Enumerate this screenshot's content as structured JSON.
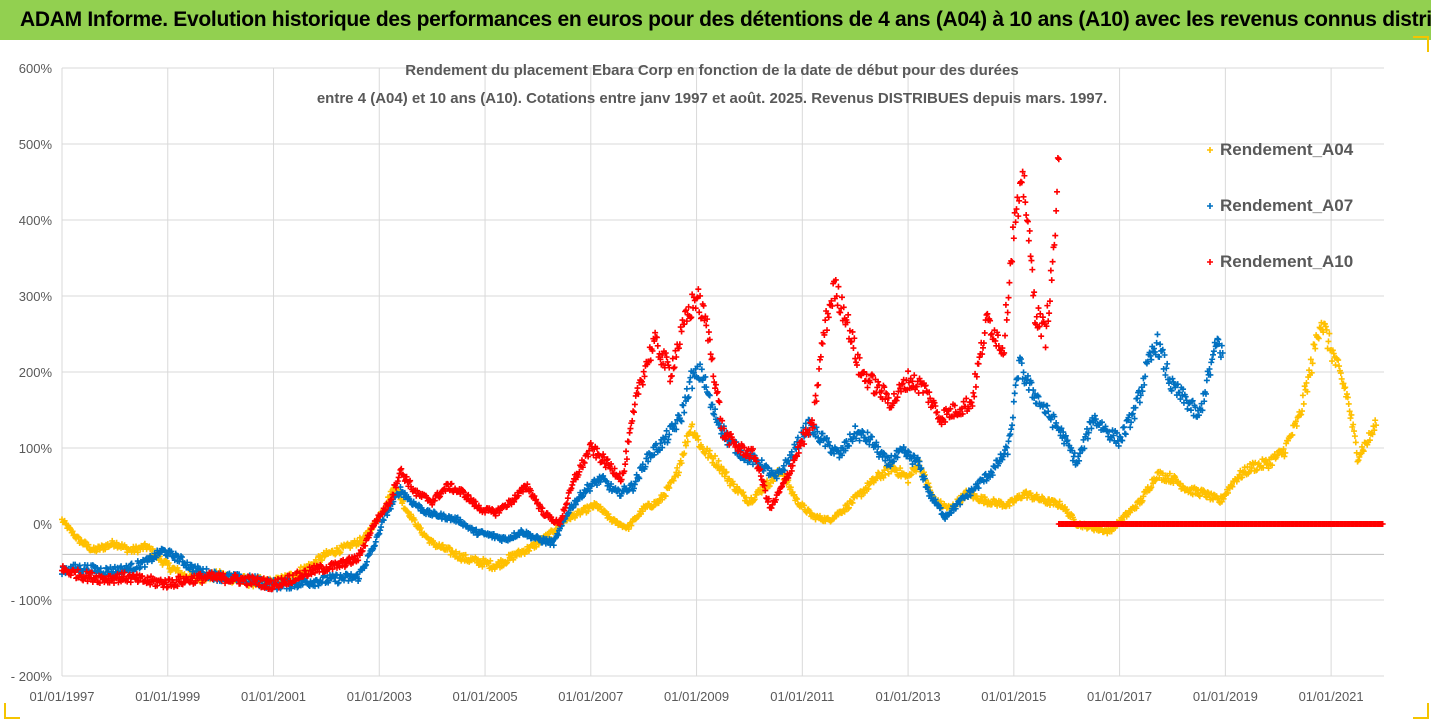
{
  "banner": {
    "title": "ADAM Informe. Evolution historique des performances en euros pour des détentions de 4 ans (A04) à 10 ans (A10) avec les revenus connus distribués"
  },
  "colors": {
    "banner_bg": "#92d050",
    "A04": "#ffc000",
    "A07": "#0070c0",
    "A10": "#ff0000",
    "grid": "#d9d9d9"
  },
  "chart_data": {
    "type": "scatter",
    "title_line1": "Rendement du placement Ebara Corp en fonction de la date de début pour des durées",
    "title_line2": "entre 4 (A04) et 10 ans (A10). Cotations entre janv 1997 et août. 2025. Revenus DISTRIBUES depuis mars. 1997.",
    "xlabel": "",
    "ylabel": "",
    "ylim": [
      -200,
      600
    ],
    "xlim": [
      1997.0,
      2022.0
    ],
    "y_ticks": [
      "600%",
      "500%",
      "400%",
      "300%",
      "200%",
      "100%",
      "0%",
      "- 100%",
      "- 200%"
    ],
    "y_tick_values": [
      600,
      500,
      400,
      300,
      200,
      100,
      0,
      -100,
      -200
    ],
    "x_ticks": [
      "01/01/1997",
      "01/01/1999",
      "01/01/2001",
      "01/01/2003",
      "01/01/2005",
      "01/01/2007",
      "01/01/2009",
      "01/01/2011",
      "01/01/2013",
      "01/01/2015",
      "01/01/2017",
      "01/01/2019",
      "01/01/2021"
    ],
    "x_tick_values": [
      1997,
      1999,
      2001,
      2003,
      2005,
      2007,
      2009,
      2011,
      2013,
      2015,
      2017,
      2019,
      2021
    ],
    "grid": true,
    "legend_position": "right",
    "series": [
      {
        "name": "Rendement_A04",
        "key": "A04",
        "points": [
          [
            1997.0,
            5
          ],
          [
            1997.3,
            -20
          ],
          [
            1997.6,
            -35
          ],
          [
            1998.0,
            -25
          ],
          [
            1998.3,
            -35
          ],
          [
            1998.6,
            -30
          ],
          [
            1999.0,
            -55
          ],
          [
            1999.3,
            -68
          ],
          [
            1999.6,
            -70
          ],
          [
            2000.0,
            -68
          ],
          [
            2000.5,
            -75
          ],
          [
            2001.0,
            -78
          ],
          [
            2001.3,
            -70
          ],
          [
            2001.7,
            -55
          ],
          [
            2002.0,
            -40
          ],
          [
            2002.4,
            -30
          ],
          [
            2002.7,
            -20
          ],
          [
            2003.0,
            10
          ],
          [
            2003.3,
            50
          ],
          [
            2003.5,
            20
          ],
          [
            2003.8,
            -10
          ],
          [
            2004.0,
            -25
          ],
          [
            2004.3,
            -35
          ],
          [
            2004.6,
            -45
          ],
          [
            2004.9,
            -50
          ],
          [
            2005.2,
            -55
          ],
          [
            2005.6,
            -40
          ],
          [
            2005.9,
            -30
          ],
          [
            2006.2,
            -15
          ],
          [
            2006.5,
            5
          ],
          [
            2006.8,
            15
          ],
          [
            2007.1,
            25
          ],
          [
            2007.4,
            5
          ],
          [
            2007.7,
            -5
          ],
          [
            2008.0,
            20
          ],
          [
            2008.3,
            30
          ],
          [
            2008.6,
            60
          ],
          [
            2008.9,
            130
          ],
          [
            2009.1,
            100
          ],
          [
            2009.4,
            80
          ],
          [
            2009.7,
            50
          ],
          [
            2010.0,
            30
          ],
          [
            2010.3,
            50
          ],
          [
            2010.6,
            70
          ],
          [
            2010.9,
            30
          ],
          [
            2011.2,
            10
          ],
          [
            2011.5,
            5
          ],
          [
            2011.8,
            20
          ],
          [
            2012.1,
            40
          ],
          [
            2012.4,
            60
          ],
          [
            2012.7,
            75
          ],
          [
            2013.0,
            60
          ],
          [
            2013.2,
            80
          ],
          [
            2013.5,
            30
          ],
          [
            2013.8,
            20
          ],
          [
            2014.1,
            40
          ],
          [
            2014.5,
            30
          ],
          [
            2014.9,
            25
          ],
          [
            2015.2,
            40
          ],
          [
            2015.6,
            30
          ],
          [
            2015.9,
            25
          ],
          [
            2016.2,
            0
          ],
          [
            2016.5,
            -5
          ],
          [
            2016.8,
            -10
          ],
          [
            2017.1,
            10
          ],
          [
            2017.4,
            30
          ],
          [
            2017.7,
            65
          ],
          [
            2018.0,
            60
          ],
          [
            2018.3,
            45
          ],
          [
            2018.6,
            40
          ],
          [
            2018.9,
            30
          ],
          [
            2019.2,
            60
          ],
          [
            2019.5,
            75
          ],
          [
            2019.8,
            80
          ],
          [
            2020.1,
            95
          ],
          [
            2020.4,
            140
          ],
          [
            2020.6,
            200
          ],
          [
            2020.8,
            270
          ],
          [
            2020.95,
            240
          ],
          [
            2021.1,
            210
          ],
          [
            2021.3,
            170
          ],
          [
            2021.5,
            90
          ],
          [
            2021.7,
            110
          ],
          [
            2021.85,
            130
          ]
        ]
      },
      {
        "name": "Rendement_A07",
        "key": "A07",
        "points": [
          [
            1997.0,
            -60
          ],
          [
            1997.4,
            -58
          ],
          [
            1997.8,
            -62
          ],
          [
            1998.2,
            -60
          ],
          [
            1998.6,
            -50
          ],
          [
            1998.9,
            -35
          ],
          [
            1999.2,
            -45
          ],
          [
            1999.5,
            -60
          ],
          [
            1999.9,
            -68
          ],
          [
            2000.3,
            -72
          ],
          [
            2000.7,
            -75
          ],
          [
            2001.0,
            -80
          ],
          [
            2001.4,
            -78
          ],
          [
            2001.8,
            -75
          ],
          [
            2002.2,
            -72
          ],
          [
            2002.6,
            -70
          ],
          [
            2002.9,
            -30
          ],
          [
            2003.1,
            10
          ],
          [
            2003.4,
            45
          ],
          [
            2003.6,
            30
          ],
          [
            2003.9,
            15
          ],
          [
            2004.2,
            10
          ],
          [
            2004.5,
            5
          ],
          [
            2004.8,
            -10
          ],
          [
            2005.1,
            -15
          ],
          [
            2005.4,
            -20
          ],
          [
            2005.7,
            -10
          ],
          [
            2006.0,
            -20
          ],
          [
            2006.3,
            -25
          ],
          [
            2006.6,
            20
          ],
          [
            2006.9,
            45
          ],
          [
            2007.2,
            60
          ],
          [
            2007.5,
            40
          ],
          [
            2007.8,
            50
          ],
          [
            2008.1,
            90
          ],
          [
            2008.4,
            110
          ],
          [
            2008.7,
            140
          ],
          [
            2008.9,
            190
          ],
          [
            2009.1,
            200
          ],
          [
            2009.3,
            150
          ],
          [
            2009.6,
            110
          ],
          [
            2009.9,
            90
          ],
          [
            2010.2,
            80
          ],
          [
            2010.5,
            60
          ],
          [
            2010.8,
            90
          ],
          [
            2011.1,
            130
          ],
          [
            2011.4,
            110
          ],
          [
            2011.7,
            90
          ],
          [
            2012.0,
            120
          ],
          [
            2012.3,
            110
          ],
          [
            2012.6,
            80
          ],
          [
            2012.9,
            95
          ],
          [
            2013.2,
            80
          ],
          [
            2013.4,
            40
          ],
          [
            2013.7,
            10
          ],
          [
            2014.0,
            30
          ],
          [
            2014.3,
            50
          ],
          [
            2014.6,
            70
          ],
          [
            2014.9,
            100
          ],
          [
            2015.1,
            210
          ],
          [
            2015.3,
            180
          ],
          [
            2015.6,
            150
          ],
          [
            2015.9,
            120
          ],
          [
            2016.2,
            80
          ],
          [
            2016.5,
            140
          ],
          [
            2016.8,
            120
          ],
          [
            2017.0,
            110
          ],
          [
            2017.3,
            150
          ],
          [
            2017.5,
            200
          ],
          [
            2017.7,
            240
          ],
          [
            2018.0,
            180
          ],
          [
            2018.3,
            160
          ],
          [
            2018.5,
            140
          ],
          [
            2018.7,
            200
          ],
          [
            2018.85,
            240
          ],
          [
            2018.95,
            225
          ]
        ]
      },
      {
        "name": "Rendement_A10",
        "key": "A10",
        "points": [
          [
            1997.0,
            -60
          ],
          [
            1997.4,
            -68
          ],
          [
            1997.8,
            -72
          ],
          [
            1998.2,
            -70
          ],
          [
            1998.6,
            -75
          ],
          [
            1999.0,
            -78
          ],
          [
            1999.4,
            -73
          ],
          [
            1999.8,
            -70
          ],
          [
            2000.2,
            -72
          ],
          [
            2000.6,
            -75
          ],
          [
            2001.0,
            -80
          ],
          [
            2001.4,
            -70
          ],
          [
            2001.8,
            -60
          ],
          [
            2002.2,
            -55
          ],
          [
            2002.6,
            -45
          ],
          [
            2002.9,
            0
          ],
          [
            2003.2,
            30
          ],
          [
            2003.4,
            70
          ],
          [
            2003.7,
            40
          ],
          [
            2004.0,
            30
          ],
          [
            2004.3,
            50
          ],
          [
            2004.6,
            40
          ],
          [
            2004.9,
            20
          ],
          [
            2005.2,
            15
          ],
          [
            2005.5,
            30
          ],
          [
            2005.8,
            50
          ],
          [
            2006.1,
            15
          ],
          [
            2006.4,
            0
          ],
          [
            2006.7,
            60
          ],
          [
            2007.0,
            100
          ],
          [
            2007.3,
            80
          ],
          [
            2007.6,
            60
          ],
          [
            2007.9,
            180
          ],
          [
            2008.2,
            240
          ],
          [
            2008.5,
            200
          ],
          [
            2008.8,
            270
          ],
          [
            2009.0,
            300
          ],
          [
            2009.2,
            260
          ],
          [
            2009.5,
            120
          ],
          [
            2009.8,
            100
          ],
          [
            2010.1,
            90
          ],
          [
            2010.4,
            20
          ],
          [
            2010.7,
            60
          ],
          [
            2011.0,
            110
          ],
          [
            2011.2,
            130
          ],
          [
            2011.4,
            250
          ],
          [
            2011.6,
            310
          ],
          [
            2011.8,
            280
          ],
          [
            2012.1,
            200
          ],
          [
            2012.4,
            180
          ],
          [
            2012.7,
            160
          ],
          [
            2013.0,
            190
          ],
          [
            2013.3,
            180
          ],
          [
            2013.6,
            140
          ],
          [
            2013.9,
            150
          ],
          [
            2014.2,
            160
          ],
          [
            2014.5,
            270
          ],
          [
            2014.8,
            230
          ],
          [
            2015.0,
            390
          ],
          [
            2015.2,
            450
          ],
          [
            2015.4,
            280
          ],
          [
            2015.6,
            250
          ],
          [
            2015.75,
            350
          ],
          [
            2015.85,
            480
          ]
        ]
      }
    ]
  }
}
